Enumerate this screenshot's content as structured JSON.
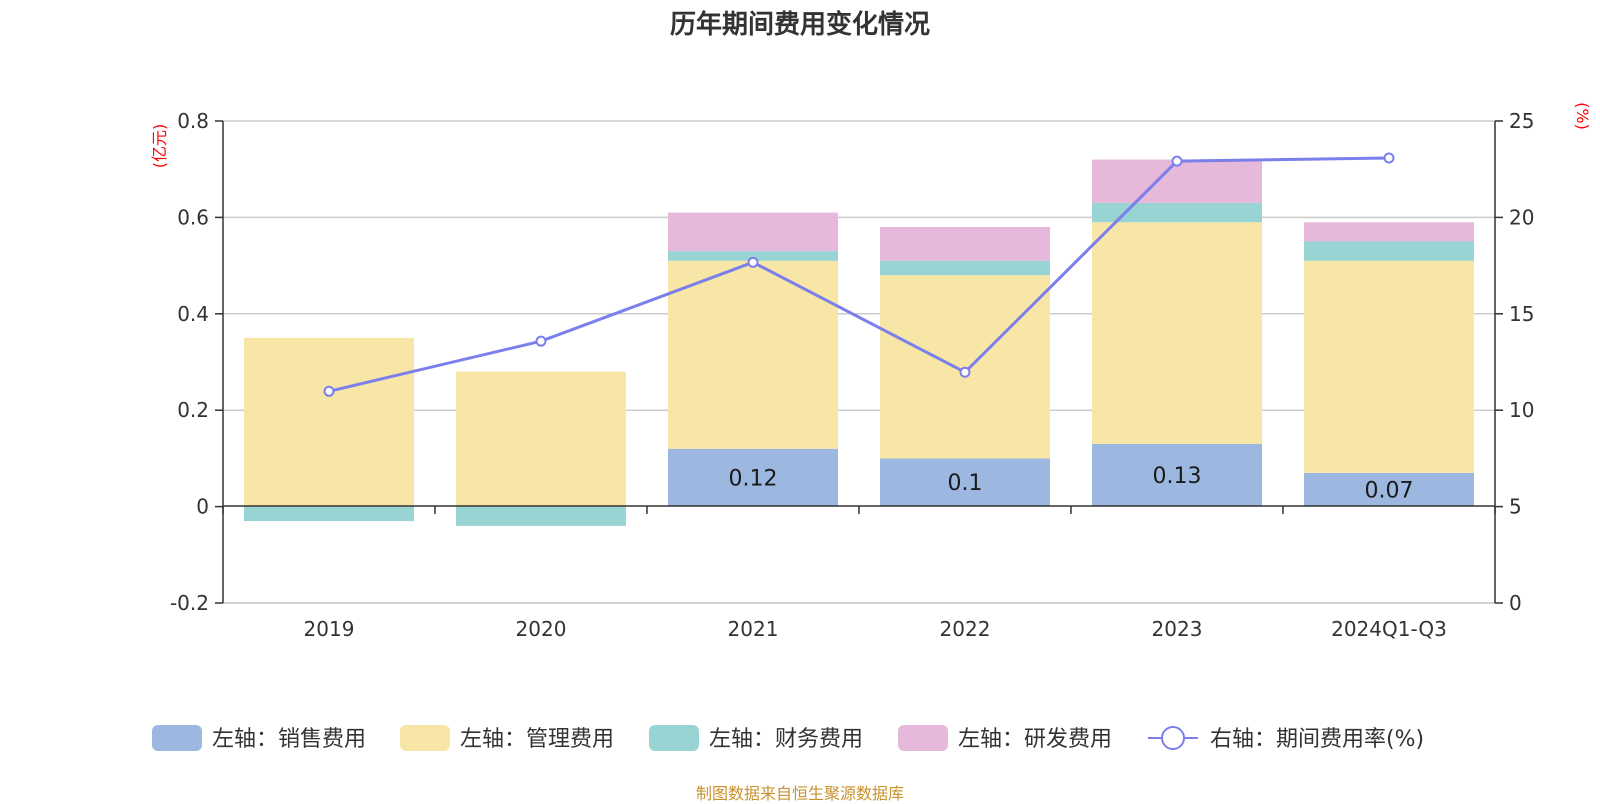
{
  "chart_data": {
    "type": "bar",
    "title": "历年期间费用变化情况",
    "categories": [
      "2019",
      "2020",
      "2021",
      "2022",
      "2023",
      "2024Q1-Q3"
    ],
    "left_axis": {
      "unit": "(亿元)",
      "ylim": [
        -0.2,
        0.8
      ],
      "ticks": [
        -0.2,
        0,
        0.2,
        0.4,
        0.6,
        0.8
      ],
      "tick_labels": [
        "-0.2",
        "0",
        "0.2",
        "0.4",
        "0.6",
        "0.8"
      ]
    },
    "right_axis": {
      "unit": "(%)",
      "ylim": [
        0,
        25
      ],
      "ticks": [
        0,
        5,
        10,
        15,
        20,
        25
      ],
      "tick_labels": [
        "0",
        "5",
        "10",
        "15",
        "20",
        "25"
      ]
    },
    "series": [
      {
        "name": "左轴：销售费用",
        "axis": "left",
        "kind": "bar",
        "color": "#9cb8e1",
        "values": [
          0,
          0,
          0.12,
          0.1,
          0.13,
          0.07
        ],
        "labels": [
          "",
          "",
          "0.12",
          "0.1",
          "0.13",
          "0.07"
        ]
      },
      {
        "name": "左轴：管理费用",
        "axis": "left",
        "kind": "bar",
        "color": "#f7e6a6",
        "values": [
          0.35,
          0.28,
          0.39,
          0.38,
          0.46,
          0.44
        ]
      },
      {
        "name": "左轴：财务费用",
        "axis": "left",
        "kind": "bar",
        "color": "#98d4d4",
        "values": [
          -0.03,
          -0.04,
          0.02,
          0.03,
          0.04,
          0.04
        ]
      },
      {
        "name": "左轴：研发费用",
        "axis": "left",
        "kind": "bar",
        "color": "#e6b9da",
        "values": [
          0,
          0,
          0.08,
          0.07,
          0.09,
          0.04
        ]
      },
      {
        "name": "右轴：期间费用率(%)",
        "axis": "right",
        "kind": "line",
        "color": "#7b7feb",
        "values": [
          10.98,
          13.58,
          17.67,
          11.97,
          22.92,
          23.08
        ]
      }
    ],
    "grid": true,
    "legend_position": "bottom"
  },
  "source_note": "制图数据来自恒生聚源数据库"
}
